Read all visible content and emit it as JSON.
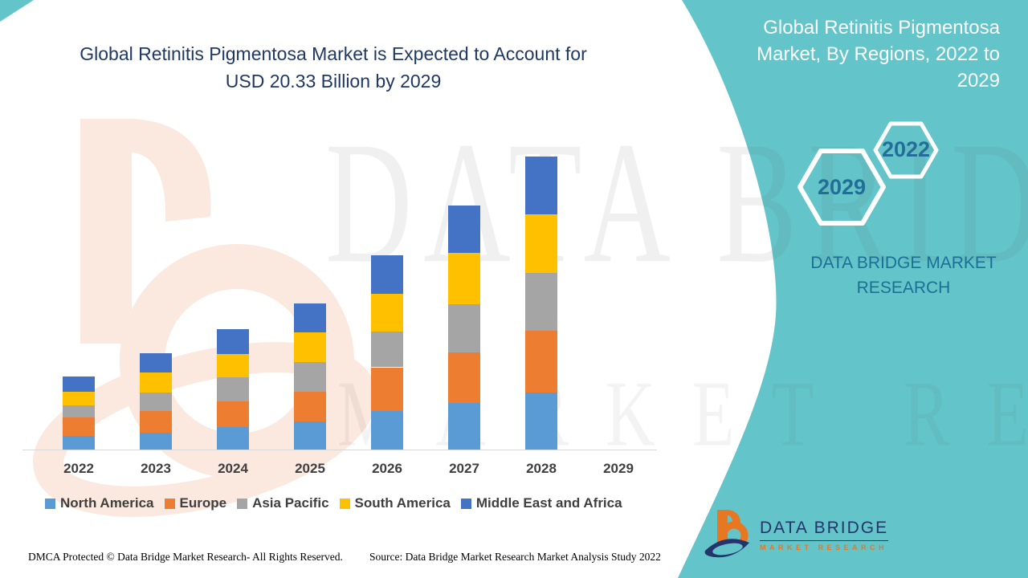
{
  "header": {
    "title_line1": "Global Retinitis Pigmentosa Market is Expected to Account for",
    "title_line2": "USD 20.33 Billion by 2029"
  },
  "side_panel": {
    "title": "Global Retinitis Pigmentosa Market, By Regions, 2022 to 2029",
    "hexagon_large_label": "2029",
    "hexagon_small_label": "2022",
    "brand_line1": "DATA BRIDGE MARKET",
    "brand_line2": "RESEARCH",
    "background_color": "#63C5C9",
    "hexagon_text_color": "#236E99"
  },
  "logo": {
    "name": "DATA BRIDGE",
    "subtitle": "MARKET RESEARCH",
    "icon": "data-bridge-b-swoosh-icon",
    "navy": "#24356B",
    "orange": "#E87722"
  },
  "watermark": {
    "line1": "DATA BRIDGE",
    "line2": "MARKET RESEARCH"
  },
  "footer": {
    "left": "DMCA Protected © Data Bridge Market Research- All Rights Reserved.",
    "right": "Source: Data Bridge Market Research Market Analysis Study 2022"
  },
  "chart_data": {
    "type": "bar",
    "stacked": true,
    "title": "Global Retinitis Pigmentosa Market is Expected to Account for USD 20.33 Billion by 2029",
    "xlabel": "",
    "ylabel": "",
    "unit": "USD Billion (estimated)",
    "grid": false,
    "legend_position": "bottom",
    "ylim": [
      0,
      20.5
    ],
    "categories": [
      "2022",
      "2023",
      "2024",
      "2025",
      "2026",
      "2027",
      "2028",
      "2029"
    ],
    "series": [
      {
        "name": "North America",
        "color": "#5B9BD5",
        "values": [
          1.0,
          1.2,
          1.6,
          2.0,
          2.7,
          3.3,
          4.0,
          0
        ]
      },
      {
        "name": "Europe",
        "color": "#ED7D31",
        "values": [
          1.3,
          1.5,
          1.8,
          2.05,
          3.05,
          3.5,
          4.3,
          0
        ]
      },
      {
        "name": "Asia Pacific",
        "color": "#A5A5A5",
        "values": [
          0.8,
          1.3,
          1.65,
          2.05,
          2.45,
          3.3,
          4.0,
          0
        ]
      },
      {
        "name": "South America",
        "color": "#FFC000",
        "values": [
          0.95,
          1.4,
          1.6,
          2.05,
          2.65,
          3.55,
          4.05,
          0
        ]
      },
      {
        "name": "Middle East and Africa",
        "color": "#4472C4",
        "values": [
          1.05,
          1.35,
          1.75,
          2.0,
          2.65,
          3.3,
          4.0,
          0
        ]
      }
    ],
    "totals": [
      5.1,
      6.75,
      8.4,
      10.15,
      13.5,
      16.95,
      20.35,
      null
    ]
  }
}
